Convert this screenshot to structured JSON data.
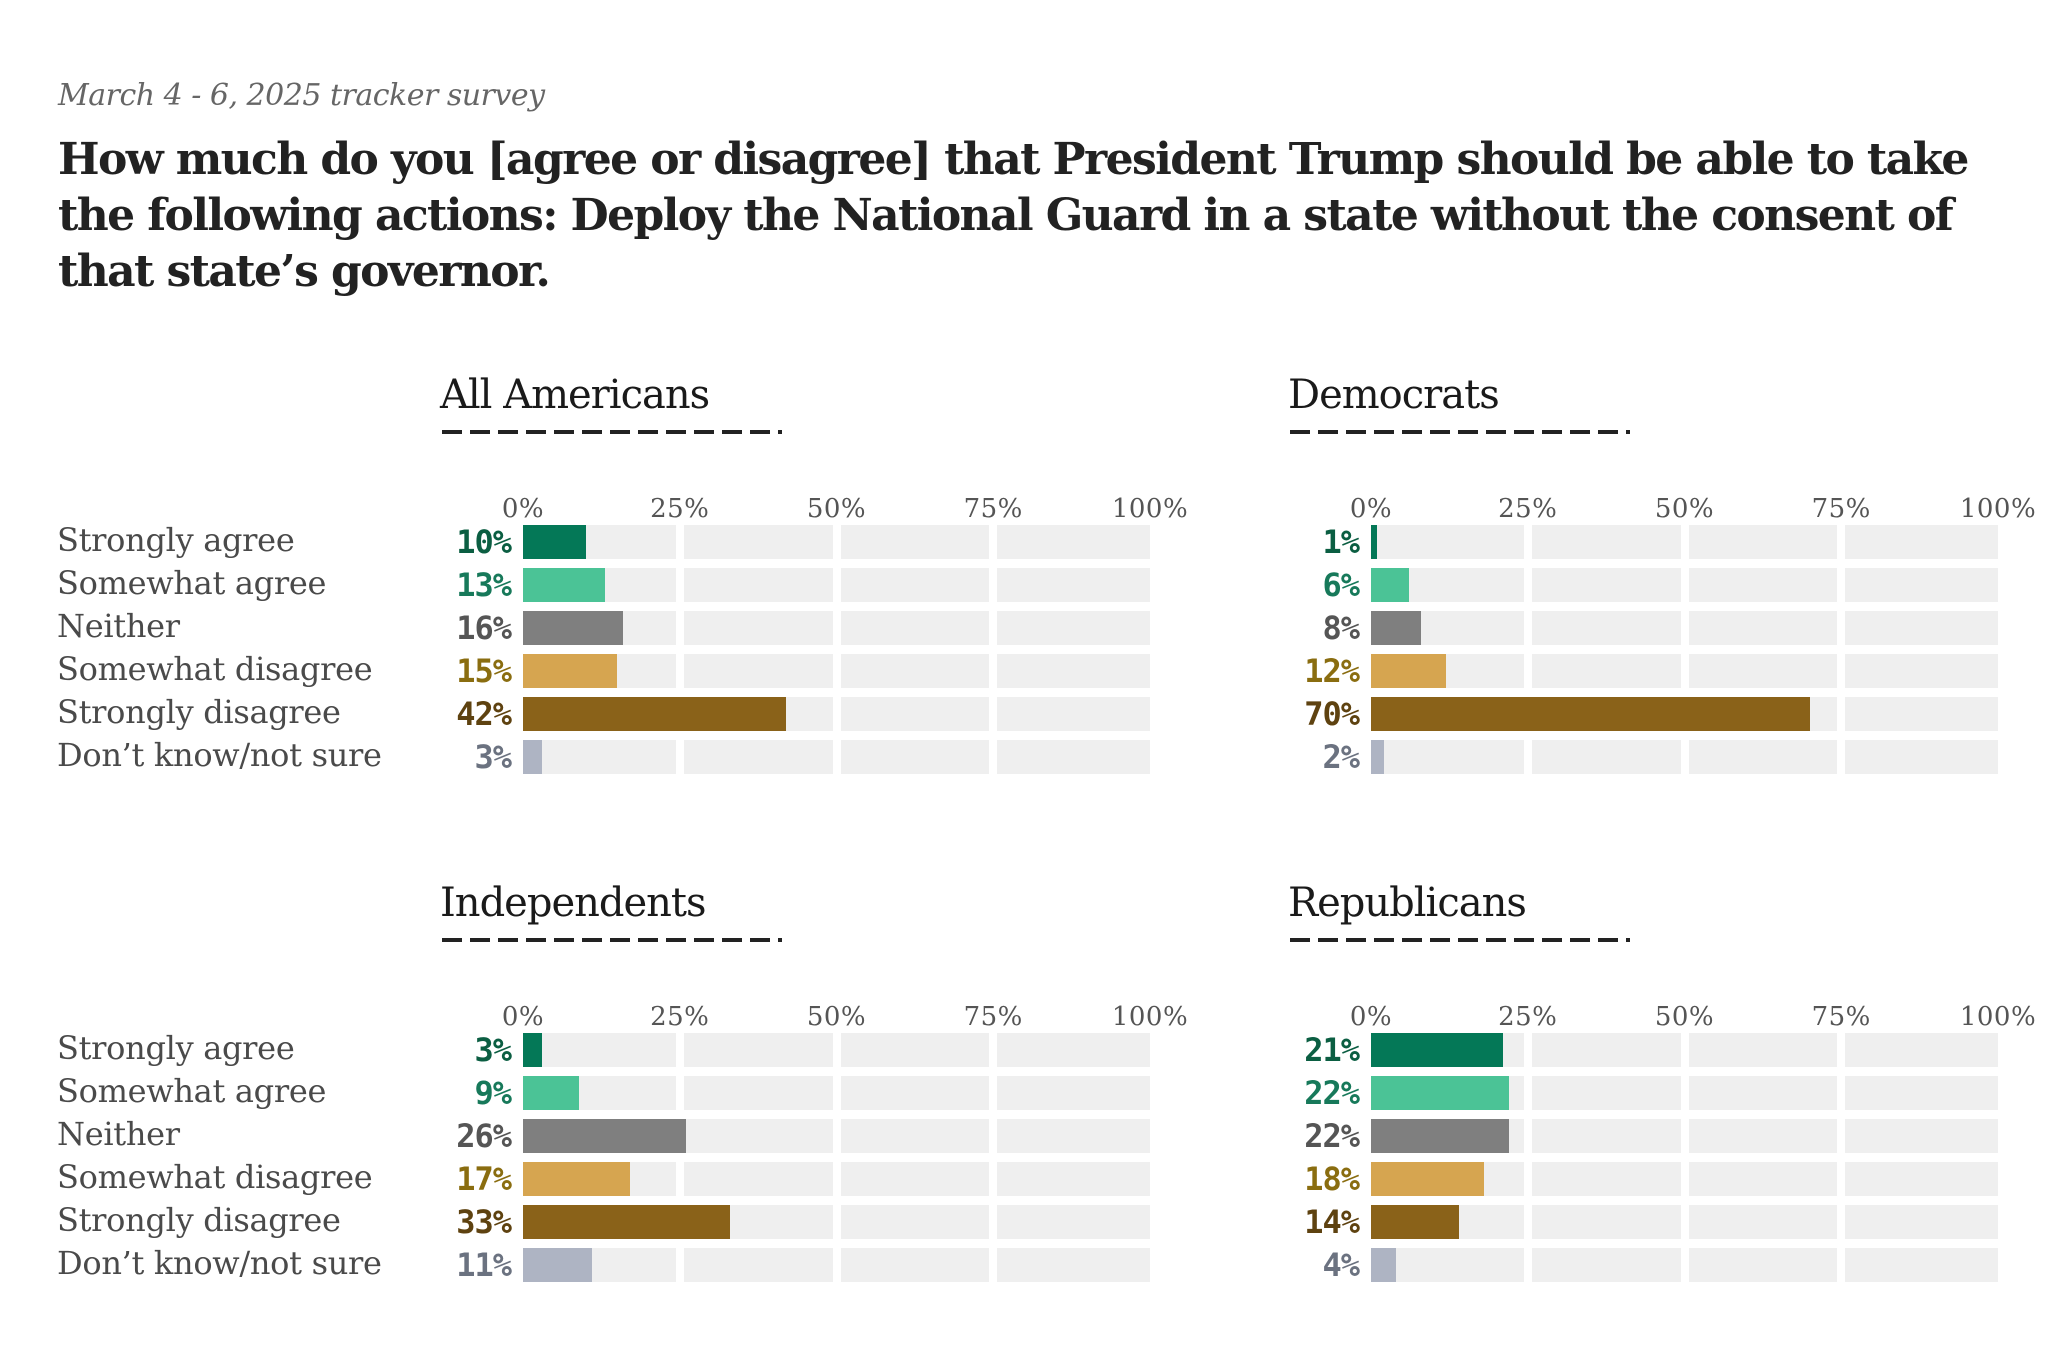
{
  "header": {
    "subtitle": "March 4 - 6, 2025 tracker survey",
    "title": "How much do you [agree or disagree] that President Trump should be able to take the following actions: Deploy the National Guard in a state without the consent of that state’s governor."
  },
  "colors": {
    "Strongly agree": {
      "bar": "#047857",
      "text": "#0b5e42"
    },
    "Somewhat agree": {
      "bar": "#4bc396",
      "text": "#17795a"
    },
    "Neither": {
      "bar": "#7f7f7f",
      "text": "#555555"
    },
    "Somewhat disagree": {
      "bar": "#d6a550",
      "text": "#8a6d10"
    },
    "Strongly disagree": {
      "bar": "#8a6219",
      "text": "#5e4210"
    },
    "Don’t know/not sure": {
      "bar": "#aeb4c3",
      "text": "#6b7280"
    },
    "track": "#efefef"
  },
  "chart_data": [
    {
      "type": "bar",
      "title": "All Americans",
      "categories": [
        "Strongly agree",
        "Somewhat agree",
        "Neither",
        "Somewhat disagree",
        "Strongly disagree",
        "Don’t know/not sure"
      ],
      "values": [
        10,
        13,
        16,
        15,
        42,
        3
      ],
      "value_labels": [
        "10%",
        "13%",
        "16%",
        "15%",
        "42%",
        "3%"
      ],
      "xticks": [
        "0%",
        "25%",
        "50%",
        "75%",
        "100%"
      ],
      "xlim": [
        0,
        100
      ],
      "orientation": "horizontal"
    },
    {
      "type": "bar",
      "title": "Democrats",
      "categories": [
        "Strongly agree",
        "Somewhat agree",
        "Neither",
        "Somewhat disagree",
        "Strongly disagree",
        "Don’t know/not sure"
      ],
      "values": [
        1,
        6,
        8,
        12,
        70,
        2
      ],
      "value_labels": [
        "1%",
        "6%",
        "8%",
        "12%",
        "70%",
        "2%"
      ],
      "xticks": [
        "0%",
        "25%",
        "50%",
        "75%",
        "100%"
      ],
      "xlim": [
        0,
        100
      ],
      "orientation": "horizontal"
    },
    {
      "type": "bar",
      "title": "Independents",
      "categories": [
        "Strongly agree",
        "Somewhat agree",
        "Neither",
        "Somewhat disagree",
        "Strongly disagree",
        "Don’t know/not sure"
      ],
      "values": [
        3,
        9,
        26,
        17,
        33,
        11
      ],
      "value_labels": [
        "3%",
        "9%",
        "26%",
        "17%",
        "33%",
        "11%"
      ],
      "xticks": [
        "0%",
        "25%",
        "50%",
        "75%",
        "100%"
      ],
      "xlim": [
        0,
        100
      ],
      "orientation": "horizontal"
    },
    {
      "type": "bar",
      "title": "Republicans",
      "categories": [
        "Strongly agree",
        "Somewhat agree",
        "Neither",
        "Somewhat disagree",
        "Strongly disagree",
        "Don’t know/not sure"
      ],
      "values": [
        21,
        22,
        22,
        18,
        14,
        4
      ],
      "value_labels": [
        "21%",
        "22%",
        "22%",
        "18%",
        "14%",
        "4%"
      ],
      "xticks": [
        "0%",
        "25%",
        "50%",
        "75%",
        "100%"
      ],
      "xlim": [
        0,
        100
      ],
      "orientation": "horizontal"
    }
  ]
}
